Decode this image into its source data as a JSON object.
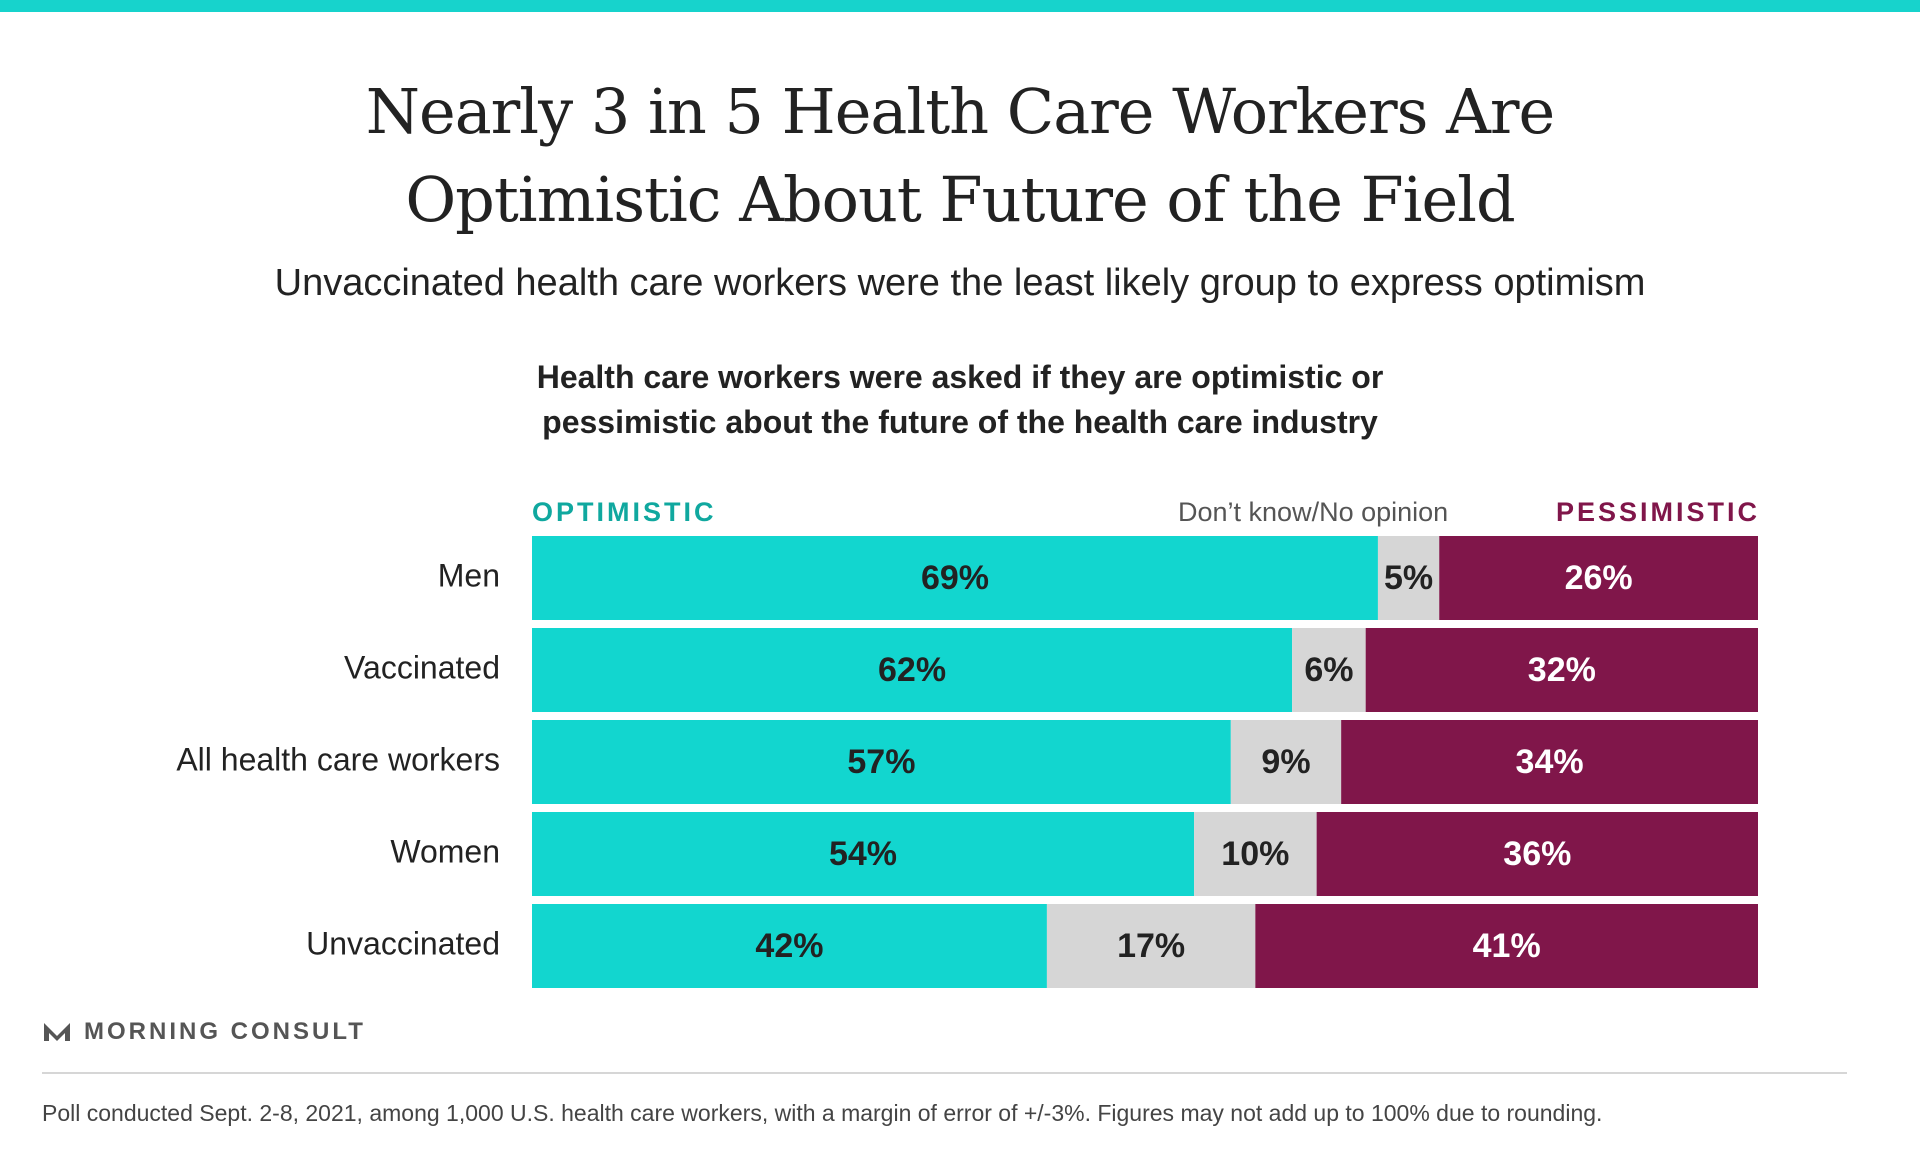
{
  "header": {
    "title_line1": "Nearly 3 in 5 Health Care Workers Are",
    "title_line2": "Optimistic About Future of the Field",
    "subtitle": "Unvaccinated health care workers were the least likely group to express optimism"
  },
  "chart_question": {
    "line1": "Health care workers were asked if they are optimistic or",
    "line2": "pessimistic about the future of the health care industry"
  },
  "legend": {
    "optimistic": "OPTIMISTIC",
    "dont_know": "Don’t know/No opinion",
    "pessimistic": "PESSIMISTIC"
  },
  "colors": {
    "accent_bar": "#17d3cc",
    "optimistic": "#12d6cf",
    "optimistic_label": "#10a89f",
    "dont_know": "#d6d6d6",
    "pessimistic": "#80164a",
    "logo": "#555555"
  },
  "chart_data": {
    "type": "bar",
    "orientation": "horizontal",
    "stacked": true,
    "categories": [
      "Men",
      "Vaccinated",
      "All health care workers",
      "Women",
      "Unvaccinated"
    ],
    "series": [
      {
        "name": "OPTIMISTIC",
        "values": [
          69,
          62,
          57,
          54,
          42
        ]
      },
      {
        "name": "Don’t know/No opinion",
        "values": [
          5,
          6,
          9,
          10,
          17
        ]
      },
      {
        "name": "PESSIMISTIC",
        "values": [
          26,
          32,
          34,
          36,
          41
        ]
      }
    ],
    "value_suffix": "%",
    "xlim": [
      0,
      100
    ],
    "grid": false,
    "legend_position": "top"
  },
  "branding": {
    "logo_text": "MORNING CONSULT"
  },
  "footnote": "Poll conducted Sept. 2-8, 2021, among 1,000 U.S. health care workers, with a margin of error of +/-3%. Figures may not add up to 100% due to rounding."
}
